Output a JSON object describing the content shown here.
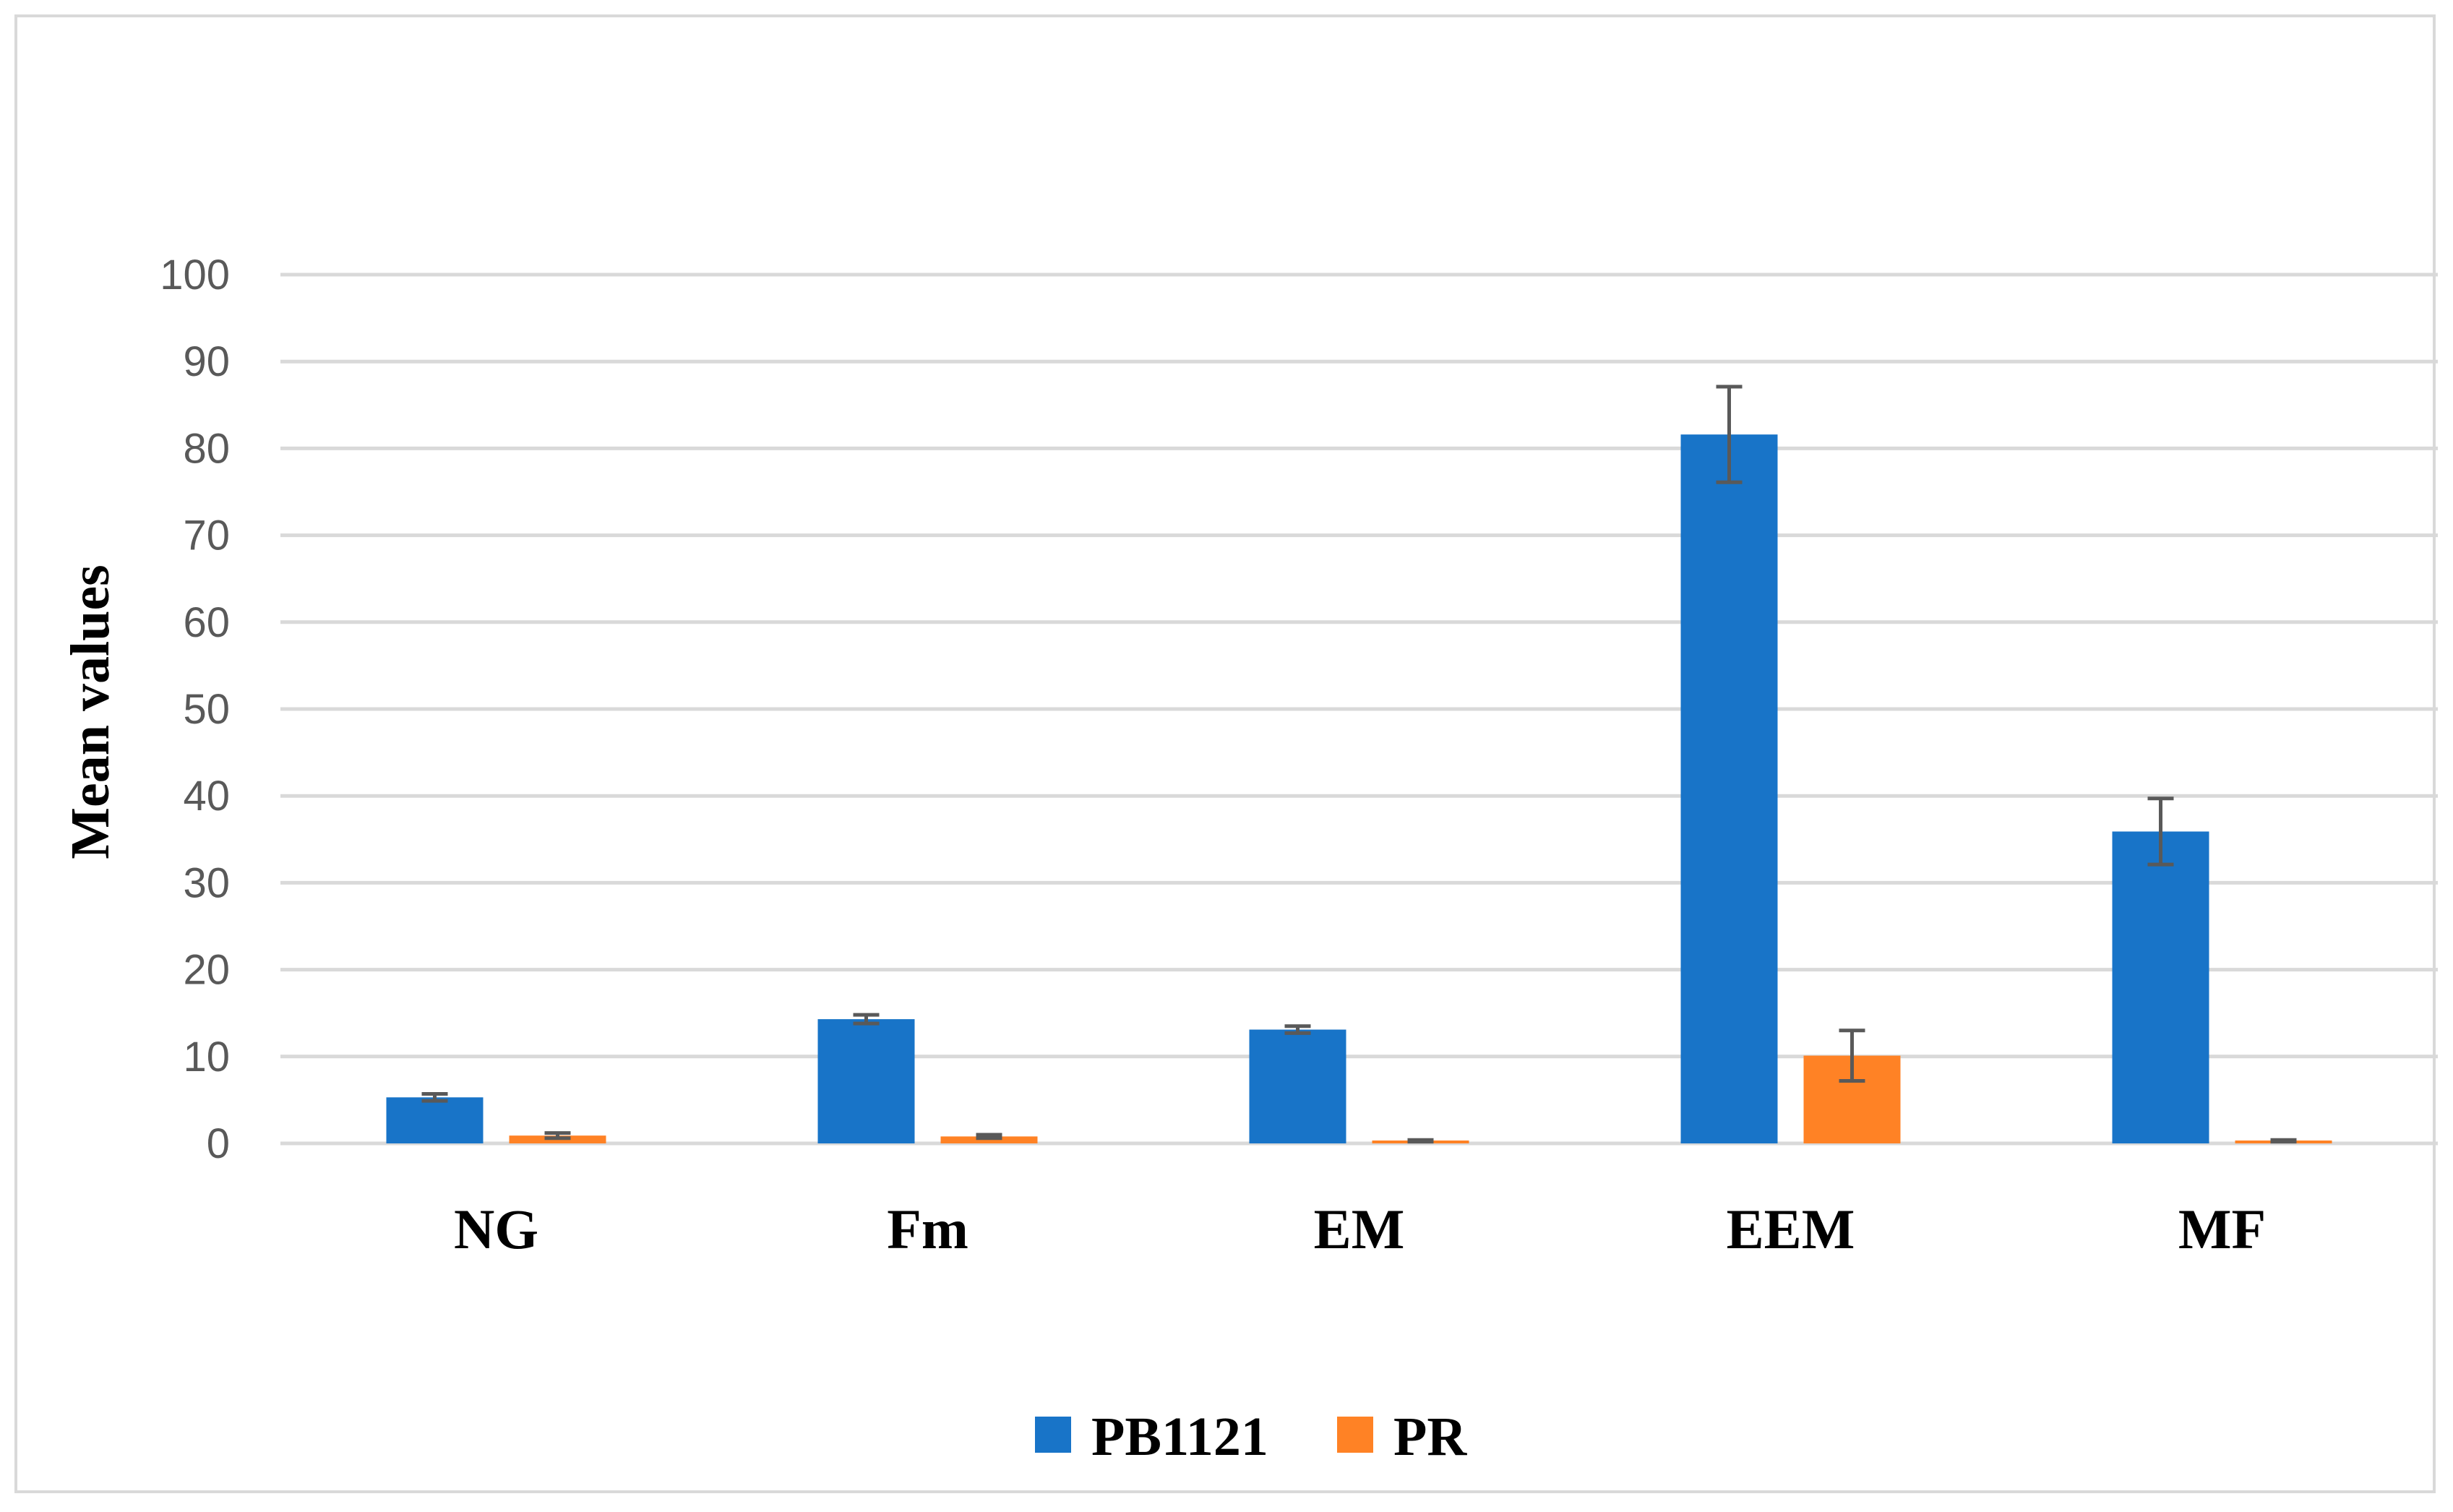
{
  "chart_data": {
    "type": "bar",
    "title": "",
    "xlabel": "",
    "ylabel": "Mean values",
    "ylim": [
      0,
      100
    ],
    "yticks": [
      0,
      10,
      20,
      30,
      40,
      50,
      60,
      70,
      80,
      90,
      100
    ],
    "grid": true,
    "legend_position": "bottom",
    "categories": [
      "NG",
      "Fm",
      "EM",
      "EEM",
      "MF"
    ],
    "series": [
      {
        "name": "PB1121",
        "color": "#1874C8",
        "values": [
          5.3,
          14.3,
          13.1,
          81.6,
          35.9
        ],
        "errors": [
          0.4,
          0.5,
          0.4,
          5.5,
          3.8
        ]
      },
      {
        "name": "PR",
        "color": "#FF8225",
        "values": [
          0.9,
          0.8,
          0.3,
          10.1,
          0.3
        ],
        "errors": [
          0.3,
          0.2,
          0.1,
          2.9,
          0.1
        ]
      }
    ],
    "error_bar_color": "#595959"
  }
}
